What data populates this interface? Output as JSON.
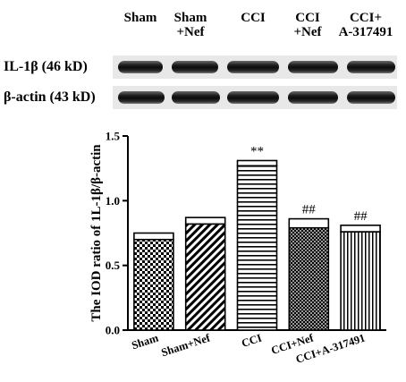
{
  "blot": {
    "headers": [
      {
        "line1": "Sham",
        "line2": ""
      },
      {
        "line1": "Sham",
        "line2": "+Nef"
      },
      {
        "line1": "CCI",
        "line2": ""
      },
      {
        "line1": "CCI",
        "line2": "+Nef"
      },
      {
        "line1": "CCI+",
        "line2": "A-317491"
      }
    ],
    "rows": [
      {
        "label": "IL-1β (46 kD)",
        "band_intensity": [
          0.78,
          0.8,
          0.95,
          0.92,
          0.9
        ]
      },
      {
        "label": "β-actin (43 kD)",
        "band_intensity": [
          0.95,
          0.95,
          0.95,
          0.95,
          0.95
        ]
      }
    ]
  },
  "chart_data": {
    "type": "bar",
    "ylabel": "The IOD ratio of 1L-1β/β-actin",
    "xlabel": "",
    "ylim": [
      0.0,
      1.5
    ],
    "yticks": [
      "0.0",
      "0.5",
      "1.0",
      "1.5"
    ],
    "categories": [
      "Sham",
      "Sham+Nef",
      "CCI",
      "CCI+Nef",
      "CCI+A-317491"
    ],
    "values": [
      0.7,
      0.82,
      1.27,
      0.79,
      0.76
    ],
    "errors": [
      0.05,
      0.05,
      0.04,
      0.07,
      0.05
    ],
    "annotations": [
      "",
      "",
      "**",
      "##",
      "##"
    ],
    "patterns": [
      "checker",
      "diagonal",
      "horizontal",
      "crosshatch",
      "vertical"
    ],
    "grid": false
  }
}
